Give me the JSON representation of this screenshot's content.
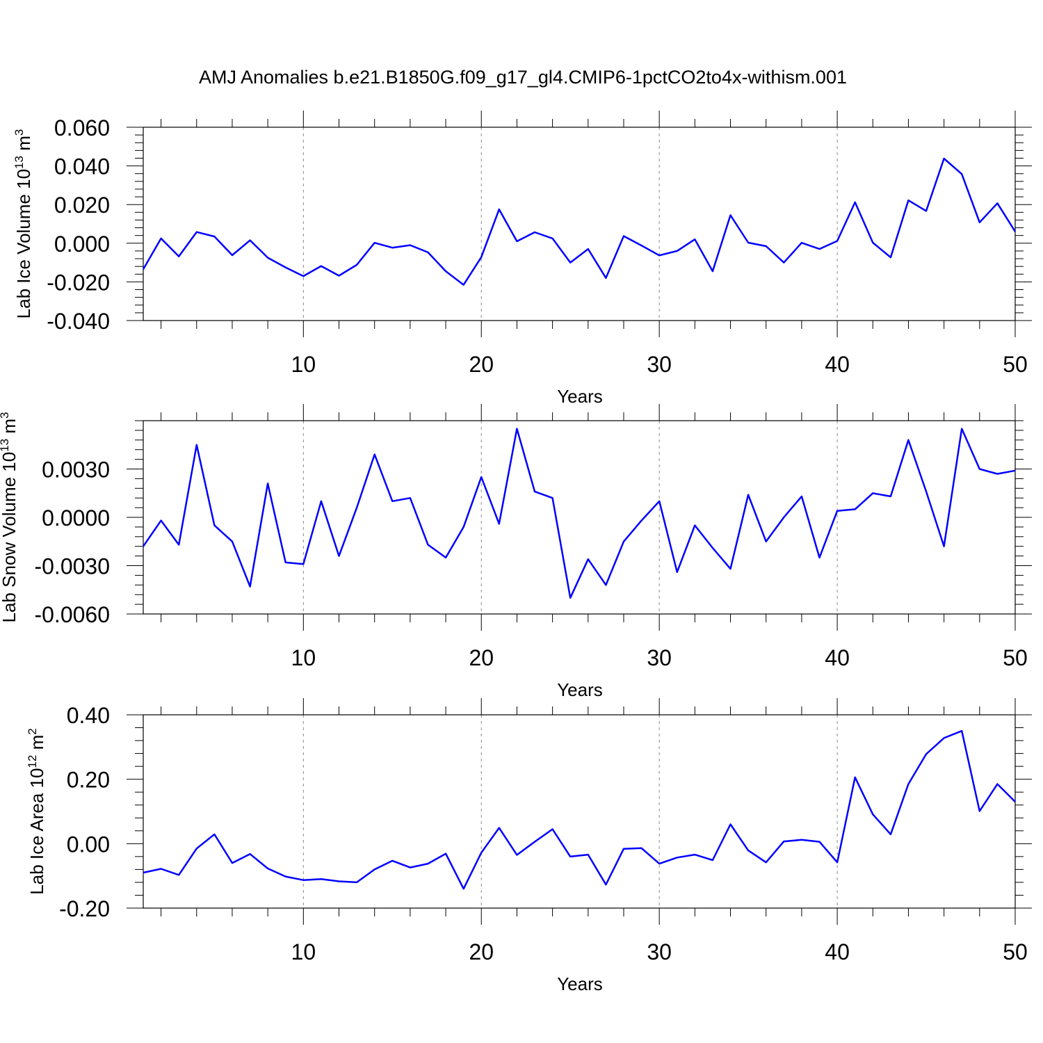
{
  "title": "AMJ Anomalies b.e21.B1850G.f09_g17_gl4.CMIP6-1pctCO2to4x-withism.001",
  "chart_data": [
    {
      "type": "line",
      "xlabel": "Years",
      "ylabel": "Lab Ice Volume 10",
      "ylabel_exp": "13",
      "ylabel_unit": " m",
      "ylabel_unit_exp": "3",
      "xlim": [
        1,
        50
      ],
      "ylim": [
        -0.04,
        0.06
      ],
      "xticks": [
        10,
        20,
        30,
        40,
        50
      ],
      "yticks": [
        -0.04,
        -0.02,
        0.0,
        0.02,
        0.04,
        0.06
      ],
      "ytick_labels": [
        "-0.040",
        "-0.020",
        "0.000",
        "0.020",
        "0.040",
        "0.060"
      ],
      "grid": "vertical dashed at major x ticks",
      "series": [
        {
          "color": "#0000ff",
          "x": [
            1,
            2,
            3,
            4,
            5,
            6,
            7,
            8,
            9,
            10,
            11,
            12,
            13,
            14,
            15,
            16,
            17,
            18,
            19,
            20,
            21,
            22,
            23,
            24,
            25,
            26,
            27,
            28,
            29,
            30,
            31,
            32,
            33,
            34,
            35,
            36,
            37,
            38,
            39,
            40,
            41,
            42,
            43,
            44,
            45,
            46,
            47,
            48,
            49,
            50
          ],
          "values": [
            -0.0135,
            0.0025,
            -0.0068,
            0.0058,
            0.0035,
            -0.0062,
            0.0015,
            -0.0075,
            -0.0125,
            -0.017,
            -0.0118,
            -0.0168,
            -0.0112,
            0.0002,
            -0.0023,
            -0.001,
            -0.0047,
            -0.0145,
            -0.0215,
            -0.0072,
            0.0175,
            0.001,
            0.0057,
            0.0025,
            -0.01,
            -0.003,
            -0.018,
            0.0037,
            -0.0012,
            -0.0063,
            -0.004,
            0.002,
            -0.0145,
            0.0145,
            0.0003,
            -0.0015,
            -0.01,
            0.0002,
            -0.003,
            0.0012,
            0.0212,
            0.0003,
            -0.0073,
            0.0222,
            0.0167,
            0.0438,
            0.0358,
            0.0108,
            0.0207,
            0.006
          ]
        }
      ]
    },
    {
      "type": "line",
      "xlabel": "Years",
      "ylabel": "Lab Snow Volume 10",
      "ylabel_exp": "13",
      "ylabel_unit": " m",
      "ylabel_unit_exp": "3",
      "xlim": [
        1,
        50
      ],
      "ylim": [
        -0.006,
        0.006
      ],
      "xticks": [
        10,
        20,
        30,
        40,
        50
      ],
      "yticks": [
        -0.006,
        -0.003,
        0.0,
        0.003
      ],
      "ytick_labels": [
        "-0.0060",
        "-0.0030",
        "0.0000",
        "0.0030"
      ],
      "grid": "vertical dashed at major x ticks",
      "series": [
        {
          "color": "#0000ff",
          "x": [
            1,
            2,
            3,
            4,
            5,
            6,
            7,
            8,
            9,
            10,
            11,
            12,
            13,
            14,
            15,
            16,
            17,
            18,
            19,
            20,
            21,
            22,
            23,
            24,
            25,
            26,
            27,
            28,
            29,
            30,
            31,
            32,
            33,
            34,
            35,
            36,
            37,
            38,
            39,
            40,
            41,
            42,
            43,
            44,
            45,
            46,
            47,
            48,
            49,
            50
          ],
          "values": [
            -0.0018,
            -0.0002,
            -0.0017,
            0.0045,
            -0.0005,
            -0.0015,
            -0.0043,
            0.0021,
            -0.0028,
            -0.0029,
            0.001,
            -0.0024,
            0.0006,
            0.0039,
            0.001,
            0.0012,
            -0.0017,
            -0.0025,
            -0.0006,
            0.0025,
            -0.0004,
            0.0055,
            0.0016,
            0.0012,
            -0.005,
            -0.0026,
            -0.0042,
            -0.0015,
            -0.0002,
            0.001,
            -0.0034,
            -0.0005,
            -0.0019,
            -0.0032,
            0.0014,
            -0.0015,
            0.0,
            0.0013,
            -0.0025,
            0.0004,
            0.0005,
            0.0015,
            0.0013,
            0.0048,
            0.0016,
            -0.0018,
            0.0055,
            0.003,
            0.0027,
            0.0029
          ]
        }
      ]
    },
    {
      "type": "line",
      "xlabel": "Years",
      "ylabel": "Lab Ice Area 10",
      "ylabel_exp": "12",
      "ylabel_unit": " m",
      "ylabel_unit_exp": "2",
      "xlim": [
        1,
        50
      ],
      "ylim": [
        -0.2,
        0.4
      ],
      "xticks": [
        10,
        20,
        30,
        40,
        50
      ],
      "yticks": [
        -0.2,
        0.0,
        0.2,
        0.4
      ],
      "ytick_labels": [
        "-0.20",
        "0.00",
        "0.20",
        "0.40"
      ],
      "grid": "vertical dashed at major x ticks",
      "series": [
        {
          "color": "#0000ff",
          "x": [
            1,
            2,
            3,
            4,
            5,
            6,
            7,
            8,
            9,
            10,
            11,
            12,
            13,
            14,
            15,
            16,
            17,
            18,
            19,
            20,
            21,
            22,
            23,
            24,
            25,
            26,
            27,
            28,
            29,
            30,
            31,
            32,
            33,
            34,
            35,
            36,
            37,
            38,
            39,
            40,
            41,
            42,
            43,
            44,
            45,
            46,
            47,
            48,
            49,
            50
          ],
          "values": [
            -0.09,
            -0.078,
            -0.097,
            -0.015,
            0.029,
            -0.06,
            -0.032,
            -0.077,
            -0.102,
            -0.113,
            -0.11,
            -0.117,
            -0.12,
            -0.08,
            -0.053,
            -0.074,
            -0.062,
            -0.031,
            -0.14,
            -0.028,
            0.049,
            -0.035,
            0.006,
            0.045,
            -0.04,
            -0.034,
            -0.127,
            -0.016,
            -0.014,
            -0.062,
            -0.043,
            -0.034,
            -0.051,
            0.06,
            -0.021,
            -0.058,
            0.007,
            0.012,
            0.006,
            -0.058,
            0.206,
            0.091,
            0.029,
            0.185,
            0.278,
            0.328,
            0.35,
            0.101,
            0.185,
            0.13
          ]
        }
      ]
    }
  ]
}
